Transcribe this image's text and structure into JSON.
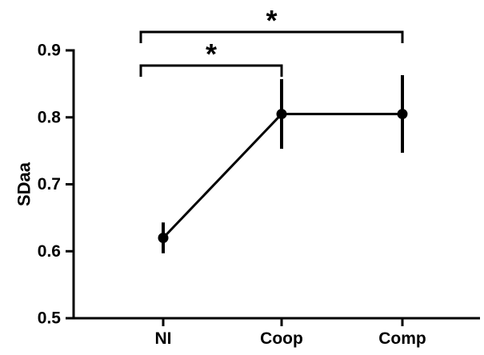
{
  "chart_data": {
    "type": "line",
    "categories": [
      "NI",
      "Coop",
      "Comp"
    ],
    "series": [
      {
        "values": [
          0.62,
          0.805,
          0.805
        ],
        "error_low": [
          0.597,
          0.753,
          0.747
        ],
        "error_high": [
          0.643,
          0.857,
          0.863
        ]
      }
    ],
    "xlabel": "",
    "ylabel": "SDaa",
    "ylim": [
      0.5,
      0.9
    ],
    "yticks": [
      0.5,
      0.6,
      0.7,
      0.8,
      0.9
    ],
    "ytick_labels": [
      "0.5",
      "0.6",
      "0.7",
      "0.8",
      "0.9"
    ],
    "grid": false,
    "colors": {
      "line": "#000000",
      "marker": "#000000"
    },
    "significance": [
      {
        "from": "NI",
        "to": "Coop",
        "label": "*"
      },
      {
        "from": "NI",
        "to": "Comp",
        "label": "*"
      }
    ]
  }
}
